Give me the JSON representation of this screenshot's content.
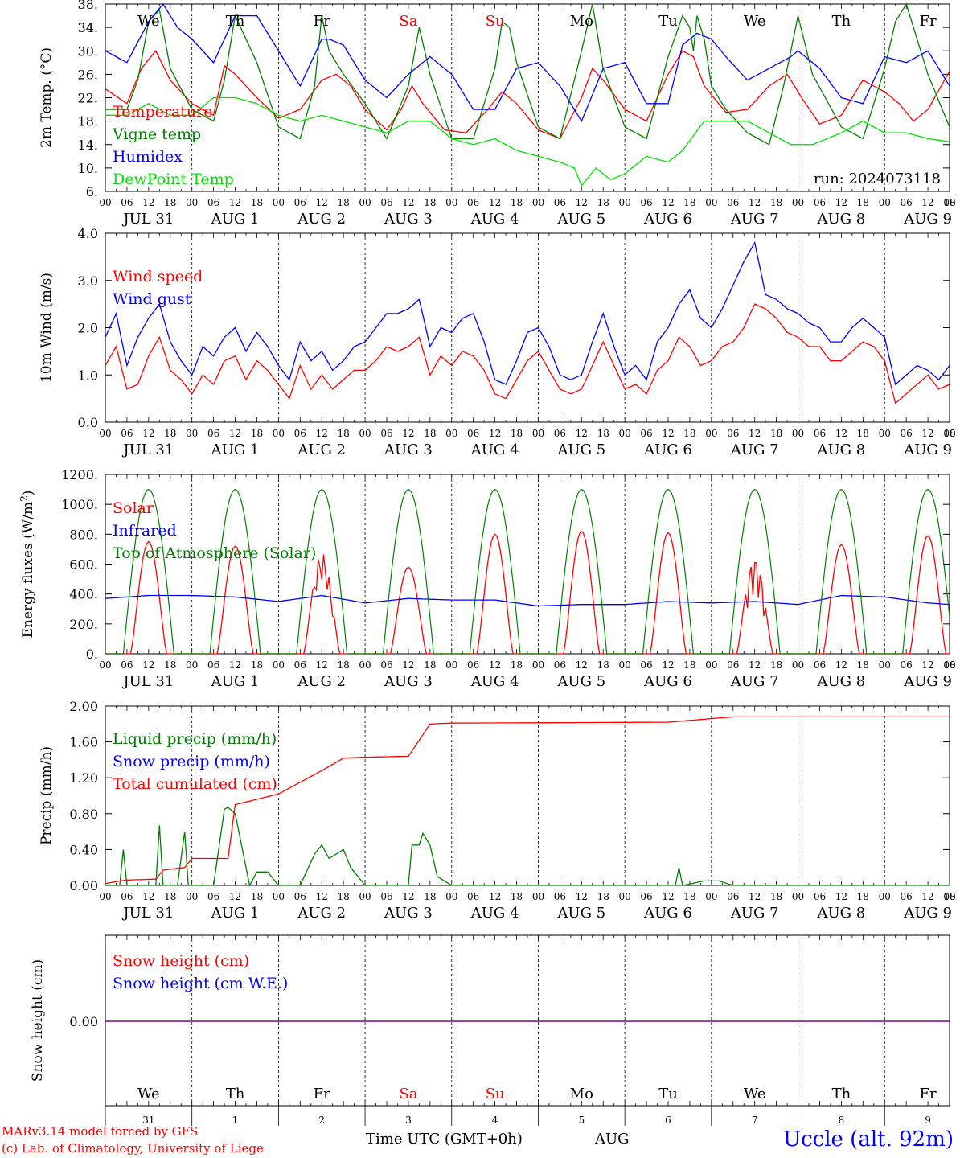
{
  "chart_data": [
    {
      "id": "temperature",
      "type": "line",
      "ylabel": "2m Temp. (°C)",
      "ylim": [
        6,
        38
      ],
      "yticks": [
        "6.",
        "10.",
        "14.",
        "18.",
        "22.",
        "26.",
        "30.",
        "34.",
        "38."
      ],
      "run_label": "run: 2024073118",
      "series": [
        {
          "name": "Temperature",
          "color": "#ff0000",
          "x": [
            0,
            6,
            10,
            14,
            18,
            24,
            30,
            33,
            36,
            42,
            48,
            54,
            60,
            64,
            68,
            72,
            78,
            82,
            85,
            88,
            94,
            100,
            106,
            110,
            114,
            120,
            126,
            132,
            135,
            138,
            144,
            150,
            156,
            160,
            163,
            166,
            172,
            178,
            184,
            189,
            193,
            198,
            204,
            210,
            216,
            220,
            224,
            228,
            234
          ],
          "y": [
            23.5,
            21,
            27,
            30,
            25,
            21,
            19,
            27.5,
            26,
            22,
            18.5,
            20,
            25,
            26,
            24,
            20,
            16.5,
            20,
            24,
            21,
            16.5,
            16,
            20,
            23,
            21,
            16.5,
            15,
            22,
            27,
            25,
            20,
            18,
            26,
            30,
            29,
            24,
            19.5,
            20,
            24,
            26,
            22,
            17.5,
            19,
            25,
            23,
            21,
            18,
            20,
            26.5
          ]
        },
        {
          "name": "Vigne temp",
          "color": "#008000",
          "x": [
            0,
            6,
            9,
            12,
            15,
            18,
            24,
            30,
            33,
            36,
            42,
            48,
            54,
            58,
            60,
            62,
            66,
            72,
            78,
            84,
            87,
            90,
            96,
            102,
            108,
            110,
            112,
            114,
            120,
            126,
            132,
            135,
            138,
            144,
            150,
            156,
            160,
            162,
            163,
            164,
            166,
            168,
            172,
            178,
            184,
            188,
            192,
            196,
            204,
            210,
            216,
            219,
            222,
            228,
            234
          ],
          "y": [
            20,
            20,
            25,
            35,
            37,
            27,
            20,
            18,
            25,
            36,
            28,
            17,
            15,
            24,
            36,
            30,
            26,
            21,
            15,
            24,
            34,
            26,
            15,
            15,
            27,
            35,
            34,
            28,
            17,
            15,
            30,
            38,
            27,
            17,
            15,
            29,
            36,
            34,
            30,
            36,
            32,
            24,
            20,
            16,
            14,
            24,
            36,
            26,
            17,
            15,
            27,
            35,
            38,
            26,
            17
          ]
        },
        {
          "name": "Humidex",
          "color": "#0000ff",
          "x": [
            0,
            6,
            12,
            16,
            20,
            24,
            30,
            36,
            42,
            48,
            54,
            60,
            62,
            66,
            72,
            78,
            84,
            90,
            96,
            102,
            108,
            114,
            120,
            126,
            132,
            138,
            144,
            150,
            156,
            160,
            164,
            168,
            172,
            178,
            184,
            190,
            192,
            198,
            204,
            210,
            216,
            222,
            228,
            234
          ],
          "y": [
            30,
            28,
            35,
            38,
            34,
            32,
            28,
            36,
            36,
            30,
            24,
            32,
            32,
            31,
            25,
            22,
            26,
            29,
            26,
            20,
            20,
            27,
            28,
            24,
            18,
            27,
            28,
            21,
            21,
            31,
            33,
            32,
            29,
            25,
            27,
            29,
            30,
            27,
            22,
            21,
            29,
            28,
            30,
            24
          ]
        },
        {
          "name": "DewPoint Temp",
          "color": "#00e000",
          "x": [
            0,
            6,
            12,
            18,
            24,
            30,
            36,
            42,
            48,
            54,
            60,
            66,
            72,
            78,
            84,
            90,
            96,
            102,
            108,
            114,
            120,
            126,
            130,
            132,
            136,
            140,
            144,
            150,
            156,
            160,
            166,
            172,
            178,
            184,
            190,
            196,
            204,
            210,
            216,
            222,
            228,
            234
          ],
          "y": [
            19,
            19,
            21,
            19,
            19,
            22,
            22,
            21,
            19,
            18,
            19,
            18,
            17,
            16,
            18,
            18,
            15,
            14,
            15,
            13,
            12,
            11,
            10,
            7,
            10,
            8,
            9,
            12,
            11,
            13,
            18,
            18,
            18,
            16,
            14,
            14,
            16,
            18,
            16,
            16,
            15,
            14.5
          ]
        }
      ]
    },
    {
      "id": "wind",
      "type": "line",
      "ylabel": "10m Wind (m/s)",
      "ylim": [
        0,
        4
      ],
      "yticks": [
        "0.0",
        "1.0",
        "2.0",
        "3.0",
        "4.0"
      ],
      "series": [
        {
          "name": "Wind speed",
          "color": "#ff0000",
          "x": [
            0,
            3,
            6,
            9,
            12,
            15,
            18,
            21,
            24,
            27,
            30,
            33,
            36,
            39,
            42,
            45,
            48,
            51,
            54,
            57,
            60,
            63,
            66,
            69,
            72,
            75,
            78,
            81,
            84,
            87,
            90,
            93,
            96,
            99,
            102,
            105,
            108,
            111,
            114,
            117,
            120,
            123,
            126,
            129,
            132,
            135,
            138,
            141,
            144,
            147,
            150,
            153,
            156,
            159,
            162,
            165,
            168,
            171,
            174,
            177,
            180,
            183,
            186,
            189,
            192,
            195,
            198,
            201,
            204,
            207,
            210,
            213,
            216,
            219,
            222,
            225,
            228,
            231,
            234
          ],
          "y": [
            1.2,
            1.6,
            0.7,
            0.8,
            1.4,
            1.8,
            1.1,
            0.9,
            0.6,
            1.0,
            0.8,
            1.3,
            1.4,
            0.9,
            1.3,
            1.1,
            0.8,
            0.5,
            1.2,
            0.7,
            1.0,
            0.7,
            0.9,
            1.1,
            1.1,
            1.3,
            1.6,
            1.5,
            1.6,
            1.8,
            1.0,
            1.4,
            1.2,
            1.5,
            1.4,
            1.1,
            0.6,
            0.5,
            0.9,
            1.3,
            1.5,
            1.1,
            0.7,
            0.6,
            0.7,
            1.2,
            1.7,
            1.2,
            0.7,
            0.8,
            0.6,
            1.1,
            1.3,
            1.8,
            1.6,
            1.2,
            1.3,
            1.6,
            1.7,
            2.0,
            2.5,
            2.4,
            2.2,
            1.9,
            1.8,
            1.6,
            1.6,
            1.3,
            1.3,
            1.5,
            1.7,
            1.6,
            1.3,
            0.4,
            0.6,
            0.8,
            1.0,
            0.7,
            0.8
          ]
        },
        {
          "name": "Wind gust",
          "color": "#0000ff",
          "x": [
            0,
            3,
            6,
            9,
            12,
            15,
            18,
            21,
            24,
            27,
            30,
            33,
            36,
            39,
            42,
            45,
            48,
            51,
            54,
            57,
            60,
            63,
            66,
            69,
            72,
            75,
            78,
            81,
            84,
            87,
            90,
            93,
            96,
            99,
            102,
            105,
            108,
            111,
            114,
            117,
            120,
            123,
            126,
            129,
            132,
            135,
            138,
            141,
            144,
            147,
            150,
            153,
            156,
            159,
            162,
            165,
            168,
            171,
            174,
            177,
            180,
            183,
            186,
            189,
            192,
            195,
            198,
            201,
            204,
            207,
            210,
            213,
            216,
            219,
            222,
            225,
            228,
            231,
            234
          ],
          "y": [
            1.8,
            2.3,
            1.2,
            1.8,
            2.2,
            2.5,
            1.7,
            1.3,
            1.0,
            1.6,
            1.4,
            1.8,
            2.0,
            1.5,
            1.9,
            1.6,
            1.2,
            0.9,
            1.7,
            1.3,
            1.5,
            1.1,
            1.3,
            1.6,
            1.7,
            2.0,
            2.3,
            2.3,
            2.4,
            2.6,
            1.6,
            2.0,
            1.9,
            2.2,
            2.3,
            1.7,
            0.9,
            0.8,
            1.3,
            1.9,
            2.0,
            1.6,
            1.0,
            0.9,
            1.0,
            1.7,
            2.3,
            1.6,
            1.0,
            1.2,
            0.9,
            1.7,
            2.0,
            2.5,
            2.8,
            2.2,
            2.0,
            2.4,
            2.9,
            3.4,
            3.8,
            2.7,
            2.6,
            2.4,
            2.3,
            2.1,
            2.0,
            1.7,
            1.7,
            2.0,
            2.2,
            2.0,
            1.8,
            0.8,
            1.0,
            1.2,
            1.1,
            0.9,
            1.2
          ]
        }
      ]
    },
    {
      "id": "energy",
      "type": "line",
      "ylabel": "Energy fluxes (W/m²)",
      "ylim": [
        0,
        1200
      ],
      "yticks": [
        "0.",
        "200.",
        "400.",
        "600.",
        "800.",
        "1000.",
        "1200."
      ],
      "series": [
        {
          "name": "Solar",
          "color": "#ff0000",
          "peaks": [
            750,
            720,
            680,
            580,
            800,
            820,
            810,
            650,
            730,
            790
          ]
        },
        {
          "name": "Infrared",
          "color": "#0000ff",
          "x": [
            0,
            12,
            24,
            36,
            48,
            60,
            72,
            84,
            96,
            108,
            120,
            132,
            144,
            156,
            168,
            180,
            192,
            204,
            216,
            228,
            234
          ],
          "y": [
            370,
            390,
            390,
            380,
            350,
            390,
            340,
            370,
            360,
            360,
            320,
            330,
            330,
            350,
            340,
            350,
            330,
            390,
            380,
            340,
            330
          ]
        },
        {
          "name": "Top of Atmosphere (Solar)",
          "color": "#008000",
          "peak": 1100
        }
      ]
    },
    {
      "id": "precip",
      "type": "line",
      "ylabel": "Precip (mm/h)",
      "ylim": [
        0,
        2
      ],
      "yticks": [
        "0.00",
        "0.40",
        "0.80",
        "1.20",
        "1.60",
        "2.00"
      ],
      "series": [
        {
          "name": "Liquid precip (mm/h)",
          "color": "#008000",
          "x": [
            0,
            4,
            5,
            6,
            8,
            14,
            15,
            16,
            20,
            22,
            23,
            24,
            27,
            30,
            33,
            34,
            36,
            40,
            42,
            45,
            48,
            54,
            58,
            60,
            62,
            66,
            68,
            72,
            84,
            85,
            87,
            88,
            90,
            92,
            96,
            156,
            158,
            159,
            160,
            166,
            170,
            174,
            234
          ],
          "y": [
            0,
            0,
            0.4,
            0,
            0,
            0,
            0.67,
            0,
            0,
            0.6,
            0,
            0,
            0,
            0,
            0.85,
            0.87,
            0.8,
            0,
            0.15,
            0.15,
            0,
            0,
            0.35,
            0.45,
            0.3,
            0.4,
            0.2,
            0,
            0,
            0.45,
            0.45,
            0.58,
            0.45,
            0.1,
            0,
            0,
            0,
            0.2,
            0,
            0.05,
            0.05,
            0,
            0
          ]
        },
        {
          "name": "Snow precip (mm/h)",
          "color": "#0000ff"
        },
        {
          "name": "Total cumulated (cm)",
          "color": "#ff0000",
          "x": [
            0,
            4,
            6,
            14,
            16,
            22,
            24,
            34,
            36,
            48,
            54,
            60,
            66,
            72,
            84,
            90,
            96,
            156,
            162,
            168,
            174,
            234
          ],
          "y": [
            0.02,
            0.05,
            0.06,
            0.07,
            0.17,
            0.2,
            0.3,
            0.3,
            0.9,
            1.02,
            1.15,
            1.28,
            1.42,
            1.43,
            1.44,
            1.8,
            1.81,
            1.82,
            1.84,
            1.86,
            1.88,
            1.88
          ]
        }
      ]
    },
    {
      "id": "snow",
      "type": "line",
      "ylabel": "Snow height (cm)",
      "yticks": [
        "0.00"
      ],
      "series": [
        {
          "name": "Snow height (cm)",
          "color": "#ff0000"
        },
        {
          "name": "Snow height (cm W.E.)",
          "color": "#0000ff"
        }
      ]
    }
  ],
  "days": [
    {
      "name": "We",
      "date": "JUL 31",
      "num": "31",
      "weekend": false
    },
    {
      "name": "Th",
      "date": "AUG  1",
      "num": "1",
      "weekend": false
    },
    {
      "name": "Fr",
      "date": "AUG  2",
      "num": "2",
      "weekend": false
    },
    {
      "name": "Sa",
      "date": "AUG  3",
      "num": "3",
      "weekend": true
    },
    {
      "name": "Su",
      "date": "AUG  4",
      "num": "4",
      "weekend": true
    },
    {
      "name": "Mo",
      "date": "AUG  5",
      "num": "5",
      "weekend": false
    },
    {
      "name": "Tu",
      "date": "AUG  6",
      "num": "6",
      "weekend": false
    },
    {
      "name": "We",
      "date": "AUG  7",
      "num": "7",
      "weekend": false
    },
    {
      "name": "Th",
      "date": "AUG  8",
      "num": "8",
      "weekend": false
    },
    {
      "name": "Fr",
      "date": "AUG  9",
      "num": "9",
      "weekend": false
    }
  ],
  "hour_labels": [
    "00",
    "06",
    "12",
    "18"
  ],
  "colors": {
    "weekend": "#ff0000",
    "weekday": "#000000"
  },
  "footer": {
    "model_line": "MARv3.14 model forced by GFS",
    "lab_line": "(c) Lab. of Climatology, University of Liege",
    "time_axis": "Time UTC (GMT+0h)",
    "month": "AUG",
    "station": "Uccle (alt. 92m)"
  }
}
